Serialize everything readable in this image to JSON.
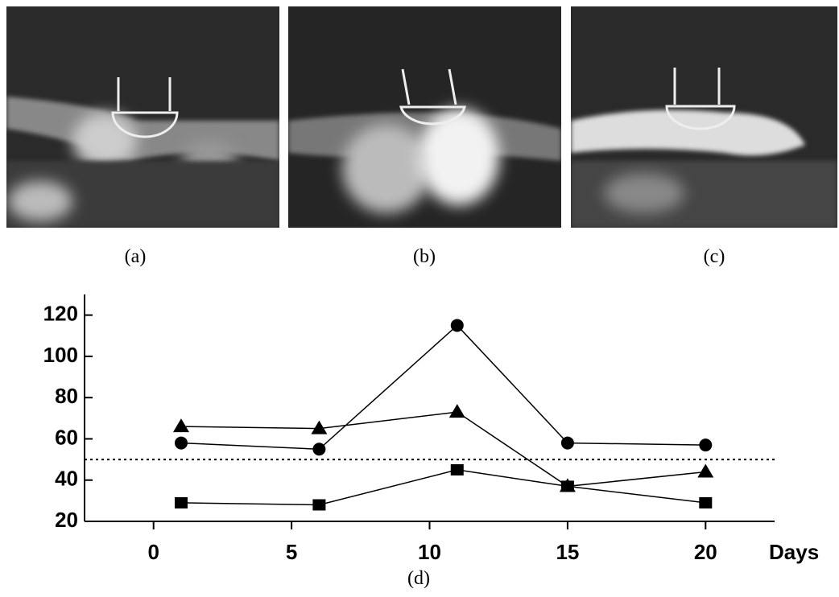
{
  "panel_labels": [
    "(a)",
    "(b)",
    "(c)"
  ],
  "chart_data": {
    "type": "line",
    "x_label": "Days",
    "caption": "(d)",
    "x": [
      1,
      6,
      11,
      15,
      20
    ],
    "series": [
      {
        "marker": "circle",
        "color": "#000000",
        "values": [
          58,
          55,
          115,
          58,
          57
        ]
      },
      {
        "marker": "triangle",
        "color": "#000000",
        "values": [
          66,
          65,
          73,
          37,
          44
        ]
      },
      {
        "marker": "square",
        "color": "#000000",
        "values": [
          29,
          28,
          45,
          37,
          29
        ]
      }
    ],
    "reference_line": 50,
    "xlim": [
      -2.5,
      22.5
    ],
    "xticks": [
      0,
      5,
      10,
      15,
      20
    ],
    "ylim": [
      20,
      130
    ],
    "yticks": [
      20,
      40,
      60,
      80,
      100,
      120
    ]
  }
}
